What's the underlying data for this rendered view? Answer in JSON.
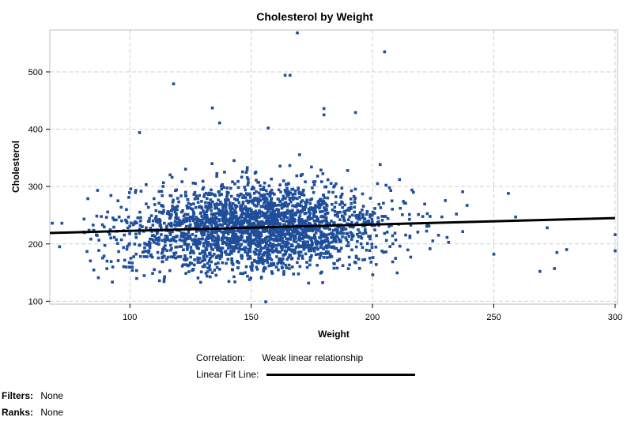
{
  "chart_data": {
    "type": "scatter",
    "title": "Cholesterol by Weight",
    "xlabel": "Weight",
    "ylabel": "Cholesterol",
    "xlim": [
      67,
      301
    ],
    "ylim": [
      95,
      573
    ],
    "xticks": [
      100,
      150,
      200,
      250,
      300
    ],
    "yticks": [
      100,
      200,
      300,
      400,
      500
    ],
    "grid": true,
    "marker_color": "#1F4E9A",
    "fit_line": {
      "color": "#000000",
      "x": [
        67,
        300
      ],
      "y": [
        219,
        245
      ]
    },
    "highlighted_points": [
      {
        "x": 169,
        "y": 568
      },
      {
        "x": 205,
        "y": 535
      },
      {
        "x": 164,
        "y": 494
      },
      {
        "x": 166,
        "y": 494
      },
      {
        "x": 118,
        "y": 479
      },
      {
        "x": 134,
        "y": 437
      },
      {
        "x": 180,
        "y": 436
      },
      {
        "x": 180,
        "y": 425
      },
      {
        "x": 193,
        "y": 429
      },
      {
        "x": 137,
        "y": 411
      },
      {
        "x": 157,
        "y": 402
      },
      {
        "x": 104,
        "y": 394
      },
      {
        "x": 269,
        "y": 152
      },
      {
        "x": 275,
        "y": 157
      },
      {
        "x": 276,
        "y": 185
      },
      {
        "x": 280,
        "y": 190
      },
      {
        "x": 300,
        "y": 216
      },
      {
        "x": 300,
        "y": 188
      },
      {
        "x": 71,
        "y": 195
      },
      {
        "x": 68,
        "y": 236
      },
      {
        "x": 72,
        "y": 236
      },
      {
        "x": 156,
        "y": 99
      },
      {
        "x": 87,
        "y": 141
      },
      {
        "x": 259,
        "y": 247
      },
      {
        "x": 256,
        "y": 288
      },
      {
        "x": 272,
        "y": 228
      },
      {
        "x": 250,
        "y": 182
      }
    ],
    "cloud": {
      "count": 2600,
      "x_mean": 152,
      "x_sd": 27,
      "x_range": [
        80,
        245
      ],
      "y_mean": 227,
      "y_sd": 38,
      "y_range": [
        130,
        380
      ]
    }
  },
  "legend": {
    "correlation_label": "Correlation:",
    "correlation_value": "Weak linear relationship",
    "fit_label": "Linear Fit Line:"
  },
  "footer": {
    "filters_label": "Filters:",
    "filters_value": "None",
    "ranks_label": "Ranks:",
    "ranks_value": "None"
  }
}
